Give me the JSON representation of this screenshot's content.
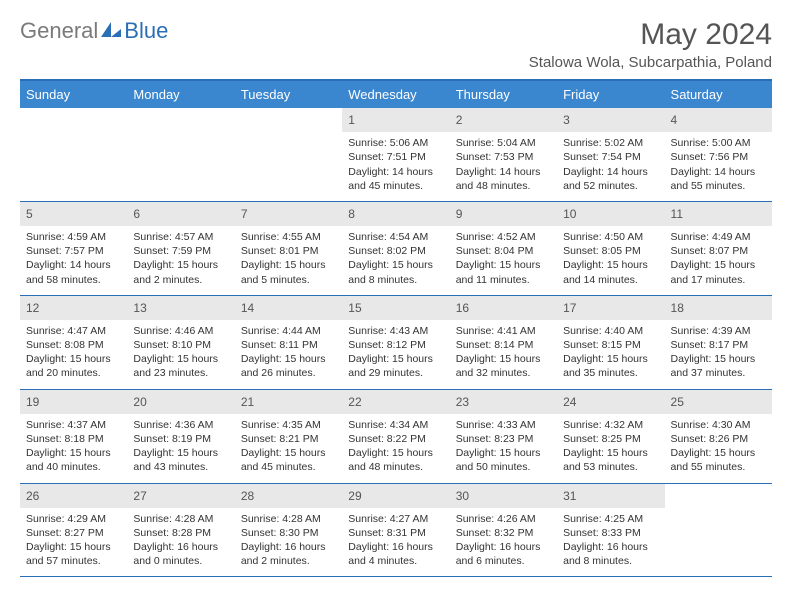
{
  "brand": {
    "left": "General",
    "right": "Blue"
  },
  "title": "May 2024",
  "location": "Stalowa Wola, Subcarpathia, Poland",
  "colors": {
    "header_bg": "#3a86cf",
    "border": "#2a6fb5",
    "daynum_bg": "#e8e8e8",
    "text": "#333333",
    "title": "#555555"
  },
  "dow": [
    "Sunday",
    "Monday",
    "Tuesday",
    "Wednesday",
    "Thursday",
    "Friday",
    "Saturday"
  ],
  "weeks": [
    [
      null,
      null,
      null,
      {
        "n": "1",
        "sr": "5:06 AM",
        "ss": "7:51 PM",
        "dl": "14 hours and 45 minutes."
      },
      {
        "n": "2",
        "sr": "5:04 AM",
        "ss": "7:53 PM",
        "dl": "14 hours and 48 minutes."
      },
      {
        "n": "3",
        "sr": "5:02 AM",
        "ss": "7:54 PM",
        "dl": "14 hours and 52 minutes."
      },
      {
        "n": "4",
        "sr": "5:00 AM",
        "ss": "7:56 PM",
        "dl": "14 hours and 55 minutes."
      }
    ],
    [
      {
        "n": "5",
        "sr": "4:59 AM",
        "ss": "7:57 PM",
        "dl": "14 hours and 58 minutes."
      },
      {
        "n": "6",
        "sr": "4:57 AM",
        "ss": "7:59 PM",
        "dl": "15 hours and 2 minutes."
      },
      {
        "n": "7",
        "sr": "4:55 AM",
        "ss": "8:01 PM",
        "dl": "15 hours and 5 minutes."
      },
      {
        "n": "8",
        "sr": "4:54 AM",
        "ss": "8:02 PM",
        "dl": "15 hours and 8 minutes."
      },
      {
        "n": "9",
        "sr": "4:52 AM",
        "ss": "8:04 PM",
        "dl": "15 hours and 11 minutes."
      },
      {
        "n": "10",
        "sr": "4:50 AM",
        "ss": "8:05 PM",
        "dl": "15 hours and 14 minutes."
      },
      {
        "n": "11",
        "sr": "4:49 AM",
        "ss": "8:07 PM",
        "dl": "15 hours and 17 minutes."
      }
    ],
    [
      {
        "n": "12",
        "sr": "4:47 AM",
        "ss": "8:08 PM",
        "dl": "15 hours and 20 minutes."
      },
      {
        "n": "13",
        "sr": "4:46 AM",
        "ss": "8:10 PM",
        "dl": "15 hours and 23 minutes."
      },
      {
        "n": "14",
        "sr": "4:44 AM",
        "ss": "8:11 PM",
        "dl": "15 hours and 26 minutes."
      },
      {
        "n": "15",
        "sr": "4:43 AM",
        "ss": "8:12 PM",
        "dl": "15 hours and 29 minutes."
      },
      {
        "n": "16",
        "sr": "4:41 AM",
        "ss": "8:14 PM",
        "dl": "15 hours and 32 minutes."
      },
      {
        "n": "17",
        "sr": "4:40 AM",
        "ss": "8:15 PM",
        "dl": "15 hours and 35 minutes."
      },
      {
        "n": "18",
        "sr": "4:39 AM",
        "ss": "8:17 PM",
        "dl": "15 hours and 37 minutes."
      }
    ],
    [
      {
        "n": "19",
        "sr": "4:37 AM",
        "ss": "8:18 PM",
        "dl": "15 hours and 40 minutes."
      },
      {
        "n": "20",
        "sr": "4:36 AM",
        "ss": "8:19 PM",
        "dl": "15 hours and 43 minutes."
      },
      {
        "n": "21",
        "sr": "4:35 AM",
        "ss": "8:21 PM",
        "dl": "15 hours and 45 minutes."
      },
      {
        "n": "22",
        "sr": "4:34 AM",
        "ss": "8:22 PM",
        "dl": "15 hours and 48 minutes."
      },
      {
        "n": "23",
        "sr": "4:33 AM",
        "ss": "8:23 PM",
        "dl": "15 hours and 50 minutes."
      },
      {
        "n": "24",
        "sr": "4:32 AM",
        "ss": "8:25 PM",
        "dl": "15 hours and 53 minutes."
      },
      {
        "n": "25",
        "sr": "4:30 AM",
        "ss": "8:26 PM",
        "dl": "15 hours and 55 minutes."
      }
    ],
    [
      {
        "n": "26",
        "sr": "4:29 AM",
        "ss": "8:27 PM",
        "dl": "15 hours and 57 minutes."
      },
      {
        "n": "27",
        "sr": "4:28 AM",
        "ss": "8:28 PM",
        "dl": "16 hours and 0 minutes."
      },
      {
        "n": "28",
        "sr": "4:28 AM",
        "ss": "8:30 PM",
        "dl": "16 hours and 2 minutes."
      },
      {
        "n": "29",
        "sr": "4:27 AM",
        "ss": "8:31 PM",
        "dl": "16 hours and 4 minutes."
      },
      {
        "n": "30",
        "sr": "4:26 AM",
        "ss": "8:32 PM",
        "dl": "16 hours and 6 minutes."
      },
      {
        "n": "31",
        "sr": "4:25 AM",
        "ss": "8:33 PM",
        "dl": "16 hours and 8 minutes."
      },
      null
    ]
  ],
  "labels": {
    "sunrise": "Sunrise:",
    "sunset": "Sunset:",
    "daylight": "Daylight:"
  }
}
